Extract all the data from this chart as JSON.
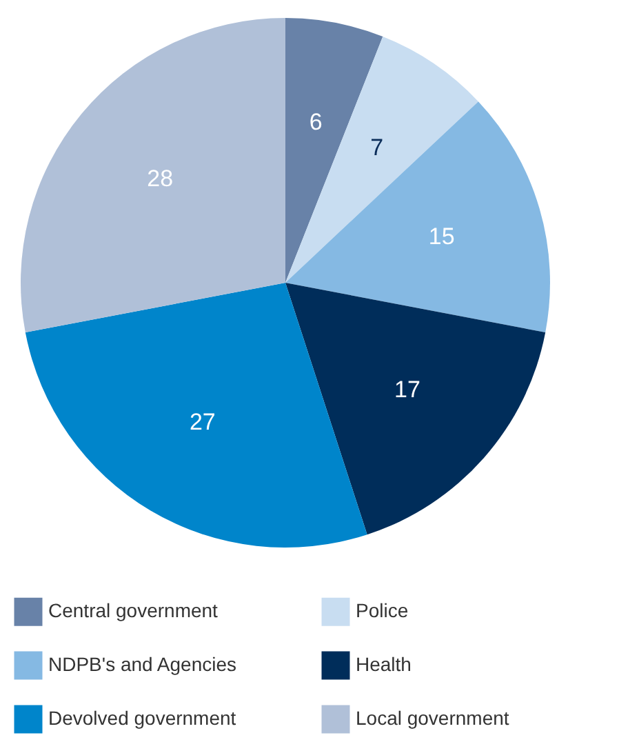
{
  "chart_data": {
    "type": "pie",
    "categories": [
      "Central government",
      "Police",
      "NDPB's and Agencies",
      "Health",
      "Devolved government",
      "Local government"
    ],
    "values": [
      6,
      7,
      15,
      17,
      27,
      28
    ],
    "colors": [
      "#6882a8",
      "#c8ddf1",
      "#85b9e3",
      "#002d5a",
      "#0085cb",
      "#b0c0d8"
    ],
    "data_labels": true,
    "legend": "bottom"
  }
}
